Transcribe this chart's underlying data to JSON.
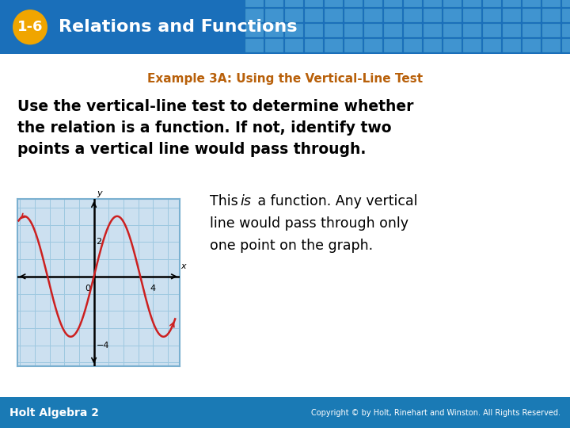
{
  "header_bg": "#1a6fba",
  "header_text": "Relations and Functions",
  "badge_text": "1-6",
  "badge_bg": "#f0a500",
  "subtitle": "Example 3A: Using the Vertical-Line Test",
  "subtitle_color": "#b8600a",
  "body_lines": [
    "Use the vertical-line test to determine whether",
    "the relation is a function. If not, identify two",
    "points a vertical line would pass through."
  ],
  "footer_left": "Holt Algebra 2",
  "footer_right": "Copyright © by Holt, Rinehart and Winston. All Rights Reserved.",
  "footer_bg": "#1a7ab5",
  "body_bg": "#ffffff",
  "graph_bg": "#cce0f0",
  "graph_border": "#7ab0d0",
  "curve_color": "#cc2020",
  "axis_color": "#000000",
  "grid_color": "#9dc8e0",
  "tile_color": "#3a90cc",
  "tile_light": "#5aaee0"
}
